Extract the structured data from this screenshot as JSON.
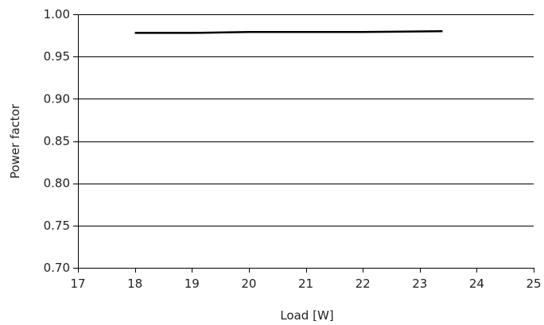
{
  "chart_data": {
    "type": "line",
    "title": "",
    "xlabel": "Load [W]",
    "ylabel": "Power factor",
    "xlim": [
      17,
      25
    ],
    "ylim": [
      0.7,
      1.0
    ],
    "x_ticks": [
      17,
      18,
      19,
      20,
      21,
      22,
      23,
      24,
      25
    ],
    "y_ticks": [
      0.7,
      0.75,
      0.8,
      0.85,
      0.9,
      0.95,
      1.0
    ],
    "x_tick_labels": [
      "17",
      "18",
      "19",
      "20",
      "21",
      "22",
      "23",
      "24",
      "25"
    ],
    "y_tick_labels": [
      "0.70",
      "0.75",
      "0.80",
      "0.85",
      "0.90",
      "0.95",
      "1.00"
    ],
    "grid": "horizontal",
    "legend": "none",
    "series": [
      {
        "color": "#000000",
        "x": [
          18.0,
          19.0,
          20.0,
          21.0,
          22.0,
          23.4
        ],
        "y": [
          0.978,
          0.978,
          0.979,
          0.979,
          0.979,
          0.98
        ]
      }
    ]
  }
}
